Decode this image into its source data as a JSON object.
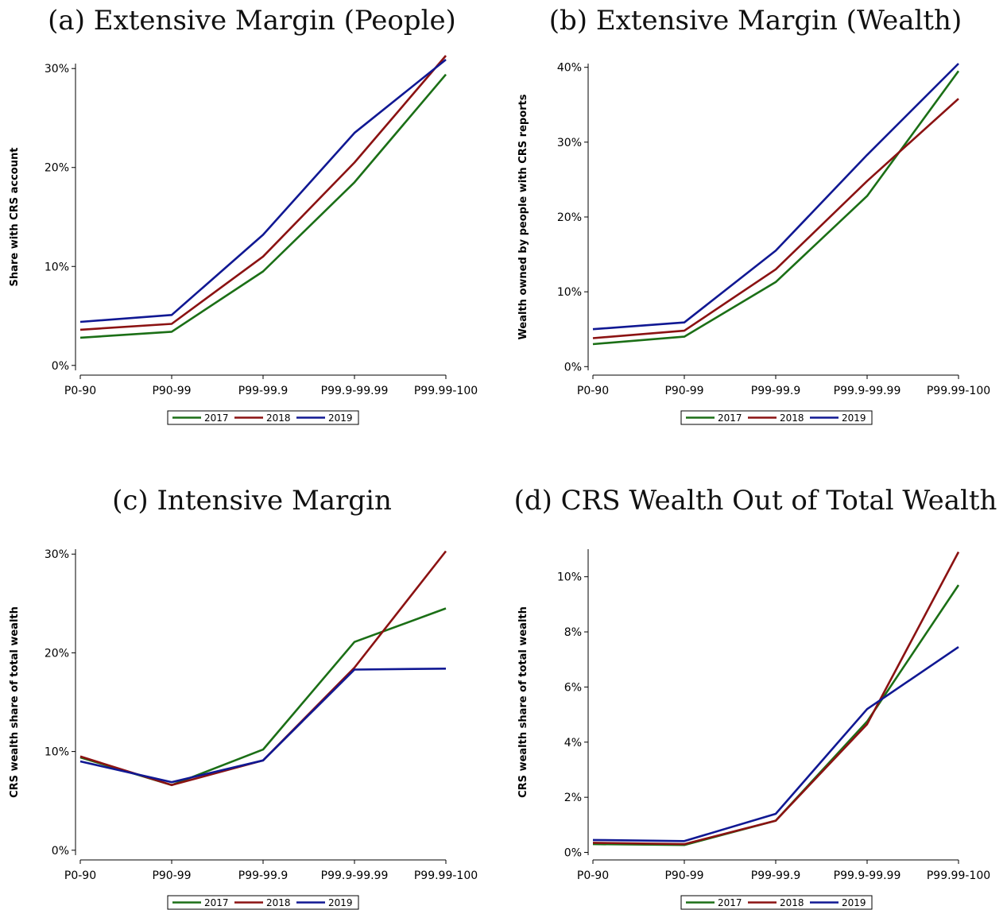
{
  "colors": {
    "2017": "#1b6f16",
    "2018": "#8b1212",
    "2019": "#101893"
  },
  "chart_data": [
    {
      "id": "a",
      "type": "line",
      "title": "(a) Extensive Margin (People)",
      "xlabel": "",
      "ylabel": "Share with CRS account",
      "categories": [
        "P0-90",
        "P90-99",
        "P99-99.9",
        "P99.9-99.99",
        "P99.99-100"
      ],
      "yticks": [
        0,
        10,
        20,
        30
      ],
      "ytick_labels": [
        "0%",
        "10%",
        "20%",
        "30%"
      ],
      "ylim": [
        -0.5,
        30.5
      ],
      "legend": {
        "placement": "bottom",
        "labels": [
          "2017",
          "2018",
          "2019"
        ]
      },
      "series": [
        {
          "name": "2017",
          "values": [
            2.8,
            3.4,
            9.5,
            18.5,
            29.4
          ]
        },
        {
          "name": "2018",
          "values": [
            3.6,
            4.2,
            11.0,
            20.5,
            31.3
          ]
        },
        {
          "name": "2019",
          "values": [
            4.4,
            5.1,
            13.2,
            23.5,
            30.9
          ]
        }
      ]
    },
    {
      "id": "b",
      "type": "line",
      "title": "(b) Extensive Margin (Wealth)",
      "xlabel": "",
      "ylabel": "Wealth owned by people with CRS reports",
      "categories": [
        "P0-90",
        "P90-99",
        "P99-99.9",
        "P99.9-99.99",
        "P99.99-100"
      ],
      "yticks": [
        0,
        10,
        20,
        30,
        40
      ],
      "ytick_labels": [
        "0%",
        "10%",
        "20%",
        "30%",
        "40%"
      ],
      "ylim": [
        -0.5,
        40.5
      ],
      "legend": {
        "placement": "bottom",
        "labels": [
          "2017",
          "2018",
          "2019"
        ]
      },
      "series": [
        {
          "name": "2017",
          "values": [
            3.0,
            4.0,
            11.3,
            22.8,
            39.5
          ]
        },
        {
          "name": "2018",
          "values": [
            3.8,
            4.8,
            13.0,
            24.8,
            35.8
          ]
        },
        {
          "name": "2019",
          "values": [
            5.0,
            5.9,
            15.5,
            28.3,
            40.5
          ]
        }
      ]
    },
    {
      "id": "c",
      "type": "line",
      "title": "(c) Intensive Margin",
      "xlabel": "",
      "ylabel": "CRS wealth share of total wealth",
      "categories": [
        "P0-90",
        "P90-99",
        "P99-99.9",
        "P99.9-99.99",
        "P99.99-100"
      ],
      "yticks": [
        0,
        10,
        20,
        30
      ],
      "ytick_labels": [
        "0%",
        "10%",
        "20%",
        "30%"
      ],
      "ylim": [
        -0.5,
        30.5
      ],
      "legend": {
        "placement": "bottom",
        "labels": [
          "2017",
          "2018",
          "2019"
        ]
      },
      "series": [
        {
          "name": "2017",
          "values": [
            9.4,
            6.6,
            10.2,
            21.1,
            24.5
          ]
        },
        {
          "name": "2018",
          "values": [
            9.5,
            6.6,
            9.1,
            18.5,
            30.3
          ]
        },
        {
          "name": "2019",
          "values": [
            9.0,
            6.9,
            9.1,
            18.3,
            18.4
          ]
        }
      ]
    },
    {
      "id": "d",
      "type": "line",
      "title": "(d) CRS Wealth Out of Total Wealth",
      "xlabel": "",
      "ylabel": "CRS wealth share of total wealth",
      "categories": [
        "P0-90",
        "P90-99",
        "P99-99.9",
        "P99.9-99.99",
        "P99.99-100"
      ],
      "yticks": [
        0,
        2,
        4,
        6,
        8,
        10
      ],
      "ytick_labels": [
        "0%",
        "2%",
        "4%",
        "6%",
        "8%",
        "10%"
      ],
      "ylim": [
        -0.1,
        11.0
      ],
      "legend": {
        "placement": "bottom",
        "labels": [
          "2017",
          "2018",
          "2019"
        ]
      },
      "series": [
        {
          "name": "2017",
          "values": [
            0.3,
            0.27,
            1.15,
            4.75,
            9.7
          ]
        },
        {
          "name": "2018",
          "values": [
            0.35,
            0.3,
            1.15,
            4.65,
            10.9
          ]
        },
        {
          "name": "2019",
          "values": [
            0.45,
            0.41,
            1.4,
            5.2,
            7.45
          ]
        }
      ]
    }
  ]
}
